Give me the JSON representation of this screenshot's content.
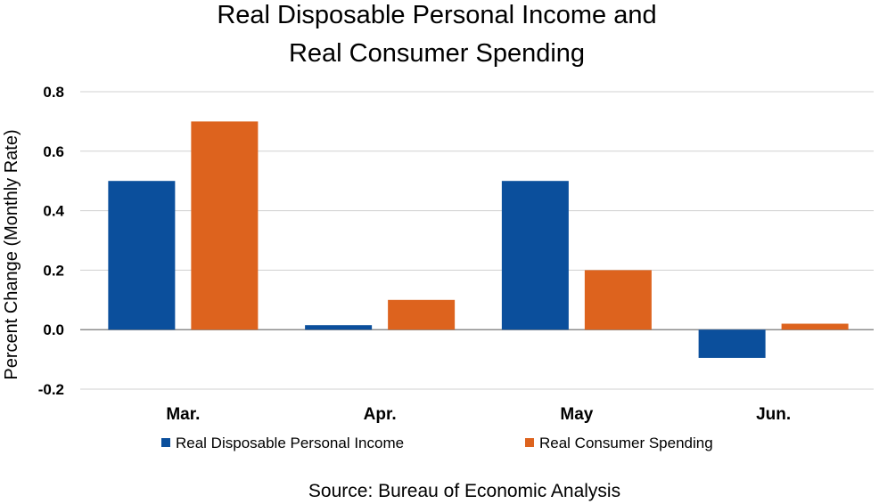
{
  "chart_data": {
    "type": "bar",
    "title": [
      "Real Disposable Personal Income and",
      "Real Consumer Spending"
    ],
    "xlabel": "",
    "ylabel": "Percent Change (Monthly Rate)",
    "categories": [
      "Mar.",
      "Apr.",
      "May",
      "Jun."
    ],
    "series": [
      {
        "name": "Real Disposable Personal Income",
        "color": "#0b4f9c",
        "values": [
          0.5,
          0.015,
          0.5,
          -0.095
        ]
      },
      {
        "name": "Real Consumer Spending",
        "color": "#dd631e",
        "values": [
          0.7,
          0.1,
          0.2,
          0.02
        ]
      }
    ],
    "ylim": [
      -0.2,
      0.8
    ],
    "yticks": [
      "0.8",
      "0.6",
      "0.4",
      "0.2",
      "0.0",
      "-0.2"
    ],
    "ytick_values": [
      0.8,
      0.6,
      0.4,
      0.2,
      0.0,
      -0.2
    ],
    "grid": true,
    "legend_position": "bottom",
    "source": "Source:  Bureau of Economic Analysis"
  }
}
